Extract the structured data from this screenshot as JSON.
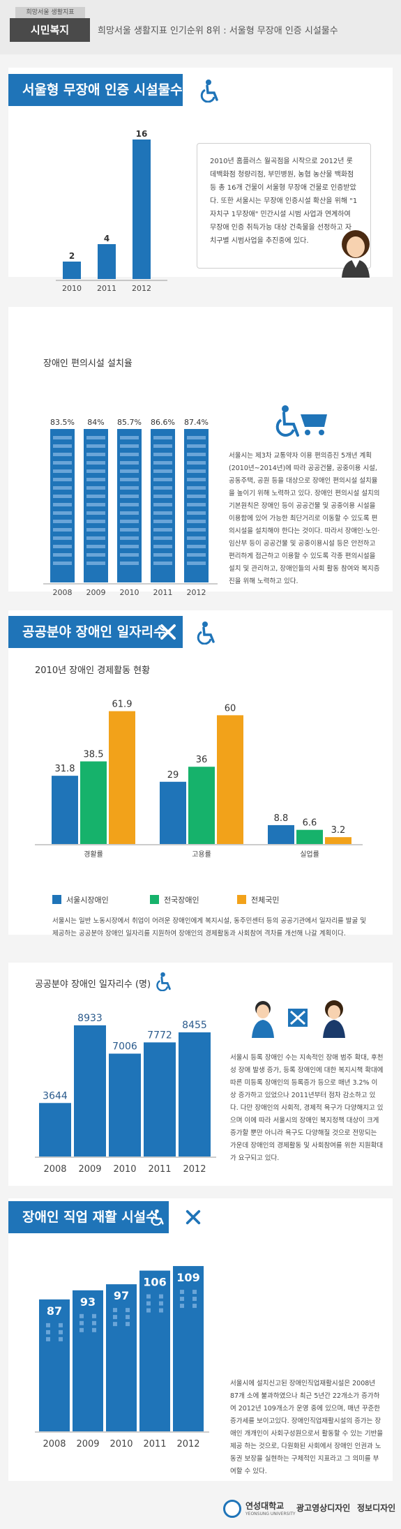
{
  "header": {
    "top_tag": "희망서울 생활지표",
    "main_tag": "시민복지",
    "title": "희망서울 생활지표 인기순위 8위 : 서울형 무장애 인증 시설물수"
  },
  "section1": {
    "title": "서울형 무장애 인증 시설물수",
    "paragraph": "2010년 홈플러스 월곡점을 시작으로 2012년 롯데백화점 청량리점, 부민병원, 농협 농산물 백화점 등 총 16개 건물이 서울형 무장애 건물로 인증받았다. 또한 서울시는 무장애 인증시설 확산을 위해 \"1자치구 1무장애\" 민간시설 시범 사업과 연계하여 무장애 인증 취득가능 대상 건축물을 선정하고 자치구별 시범사업을 추진중에 있다."
  },
  "section2": {
    "title": "장애인 편의시설 설치율",
    "paragraph": "서울시는 제3차 교통약자 이용 편의증진 5개년 계획(2010년~2014년)에 따라 공공건물, 공중이용 시설, 공동주택, 공원 등을 대상으로 장애인 편의시설 설치율을 높이기 위해 노력하고 있다. 장애인 편의시설 설치의 기본원칙은 장애인 등이 공공건물 및 공중이용 시설을 이용함에 있어 가능한 최단거리로 이동할 수 있도록 편의시설을 설치해야 한다는 것이다. 따라서 장애인·노인·임산부 등이 공공건물 및 공중이용시설 등은 안전하고 편리하게 접근하고 이용할 수 있도록 각종 편의시설을 설치 및 관리하고, 장애인들의 사회 활동 참여와 복지증진을 위해 노력하고 있다."
  },
  "section3": {
    "title": "공공분야 장애인 일자리수",
    "subtitle": "2010년 장애인 경제활동 현황",
    "legend": [
      "서울시장애인",
      "전국장애인",
      "전체국민"
    ],
    "paragraph": "서울시는 일반 노동시장에서 취업이 어려운 장애인에게 복지시설, 동주민센터 등의 공공기관에서 일자리를 발굴 및 제공하는 공공분야 장애인 일자리를 지원하여 장애인의 경제활동과 사회참여 격차를 개선해 나갈 계획이다."
  },
  "section4": {
    "title": "공공분야 장애인 일자리수 (명)",
    "paragraph": "서울시 등록 장애인 수는 지속적인 장애 범주 확대, 후천성 장애 발생 증가, 등록 장애인에 대한 복지시책 확대에 따른 미등록 장애인의 등록증가 등으로 매년 3.2% 이상 증가하고 있었으나 2011년부터 점차 감소하고 있다. 다만 장애인의 사회적, 경제적 욕구가 다양해지고 있으며 이에 따라 서울시의 장애인 복지정책 대상이 크게 증가할 뿐만 아니라 욕구도 다양해질 것으로 전망되는 가운데 장애인의 경제활동 및 사회참여를 위한 지원확대가 요구되고 있다."
  },
  "section5": {
    "title": "장애인 직업 재활 시설수",
    "paragraph": "서울시에 설치신고된 장애인직업재활시설은 2008년 87개 소에 불과하였으나 최근 5년간 22개소가 증가하여 2012년 109개소가 운영 중에 있으며, 매년 꾸준한 증가세를 보이고있다. 장애인직업재활시설의 증가는 장애인 개개인이 사회구성원으로서 활동할 수 있는 기반을 제공 하는 것으로, 다원화된 사회에서 장애인 인권과 노동권 보장을 실현하는 구체적인 지표라고 그 의미를 부여할 수 있다."
  },
  "footer": {
    "university": "연성대학교",
    "university_en": "YEONSUNG UNIVERSITY",
    "dept": "광고영상디자인",
    "major": "정보디자인"
  },
  "colors": {
    "blue": "#1f74b8",
    "green": "#16b26b",
    "orange": "#f2a21a",
    "navy": "#1a3a6a"
  },
  "chart_data": [
    {
      "type": "bar",
      "categories": [
        "2010",
        "2011",
        "2012"
      ],
      "values": [
        2,
        4,
        16
      ],
      "ylim": [
        0,
        16
      ]
    },
    {
      "type": "bar",
      "title": "장애인 편의시설 설치율",
      "categories": [
        "2008",
        "2009",
        "2010",
        "2011",
        "2012"
      ],
      "values": [
        83.5,
        84,
        85.7,
        86.6,
        87.4
      ],
      "value_labels": [
        "83.5%",
        "84%",
        "85.7%",
        "86.6%",
        "87.4%"
      ]
    },
    {
      "type": "bar",
      "title": "2010년 장애인 경제활동 현황",
      "categories": [
        "경활률",
        "고용률",
        "실업률"
      ],
      "series": [
        {
          "name": "서울시장애인",
          "values": [
            31.8,
            29,
            8.8
          ]
        },
        {
          "name": "전국장애인",
          "values": [
            38.5,
            36,
            6.6
          ]
        },
        {
          "name": "전체국민",
          "values": [
            61.9,
            60,
            3.2
          ]
        }
      ],
      "ylim": [
        0,
        65
      ]
    },
    {
      "type": "bar",
      "title": "공공분야 장애인 일자리수 (명)",
      "categories": [
        "2008",
        "2009",
        "2010",
        "2011",
        "2012"
      ],
      "values": [
        3644,
        8933,
        7006,
        7772,
        8455
      ],
      "ylim": [
        0,
        9500
      ]
    },
    {
      "type": "bar",
      "categories": [
        "2008",
        "2009",
        "2010",
        "2011",
        "2012"
      ],
      "values": [
        87,
        93,
        97,
        106,
        109
      ],
      "ylim": [
        0,
        115
      ]
    }
  ]
}
